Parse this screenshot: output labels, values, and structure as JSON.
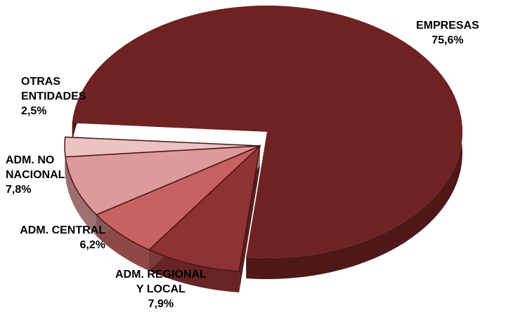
{
  "chart_data": {
    "type": "pie",
    "title": "",
    "slices": [
      {
        "label_lines": [
          "EMPRESAS"
        ],
        "value_text": "75,6%",
        "value": 75.6,
        "color": "#6e2222",
        "exploded": false
      },
      {
        "label_lines": [
          "ADM. REGIONAL",
          "Y LOCAL"
        ],
        "value_text": "7,9%",
        "value": 7.9,
        "color": "#8f3234",
        "exploded": true
      },
      {
        "label_lines": [
          "ADM. CENTRAL"
        ],
        "value_text": "6,2%",
        "value": 6.2,
        "color": "#c86262",
        "exploded": true
      },
      {
        "label_lines": [
          "ADM. NO",
          "NACIONAL"
        ],
        "value_text": "7,8%",
        "value": 7.8,
        "color": "#dc9a9a",
        "exploded": true
      },
      {
        "label_lines": [
          "OTRAS",
          "ENTIDADES"
        ],
        "value_text": "2,5%",
        "value": 2.5,
        "color": "#ecc2c2",
        "exploded": true
      }
    ],
    "legend": "none",
    "style": "3d-exploded"
  }
}
